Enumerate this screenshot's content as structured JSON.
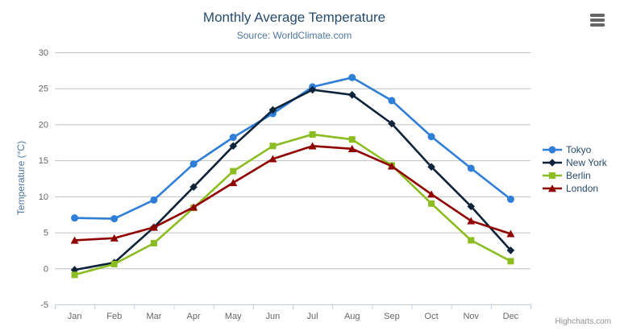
{
  "chart_data": {
    "type": "line",
    "title": "Monthly Average Temperature",
    "subtitle": "Source: WorldClimate.com",
    "xlabel": "",
    "ylabel": "Temperature (°C)",
    "categories": [
      "Jan",
      "Feb",
      "Mar",
      "Apr",
      "May",
      "Jun",
      "Jul",
      "Aug",
      "Sep",
      "Oct",
      "Nov",
      "Dec"
    ],
    "ylim": [
      -5,
      30
    ],
    "ytick_step": 5,
    "grid": true,
    "legend_position": "right",
    "series": [
      {
        "name": "Tokyo",
        "color": "#2f7ed8",
        "marker": "circle",
        "values": [
          7.0,
          6.9,
          9.5,
          14.5,
          18.2,
          21.5,
          25.2,
          26.5,
          23.3,
          18.3,
          13.9,
          9.6
        ]
      },
      {
        "name": "New York",
        "color": "#0d233a",
        "marker": "diamond",
        "values": [
          -0.2,
          0.8,
          5.7,
          11.3,
          17.0,
          22.0,
          24.8,
          24.1,
          20.1,
          14.1,
          8.6,
          2.5
        ]
      },
      {
        "name": "Berlin",
        "color": "#8bbc21",
        "marker": "square",
        "values": [
          -0.9,
          0.6,
          3.5,
          8.4,
          13.5,
          17.0,
          18.6,
          17.9,
          14.3,
          9.0,
          3.9,
          1.0
        ]
      },
      {
        "name": "London",
        "color": "#910000",
        "marker": "triangle",
        "values": [
          3.9,
          4.2,
          5.7,
          8.5,
          11.9,
          15.2,
          17.0,
          16.6,
          14.2,
          10.3,
          6.6,
          4.8
        ]
      }
    ]
  },
  "header": {
    "menu_icon": "hamburger-menu-icon"
  },
  "credits": {
    "label": "Highcharts.com"
  },
  "style": {
    "title_color": "#274b6d",
    "subtitle_color": "#4d759e",
    "axis_title_color": "#4d759e",
    "axis_label_color": "#666666",
    "grid_color": "#c0c0c0",
    "axis_line_color": "#c0d0e0",
    "legend_text_color": "#274b6d",
    "credits_color": "#909090",
    "menu_icon_color": "#666666",
    "background_color": "#ffffff"
  }
}
